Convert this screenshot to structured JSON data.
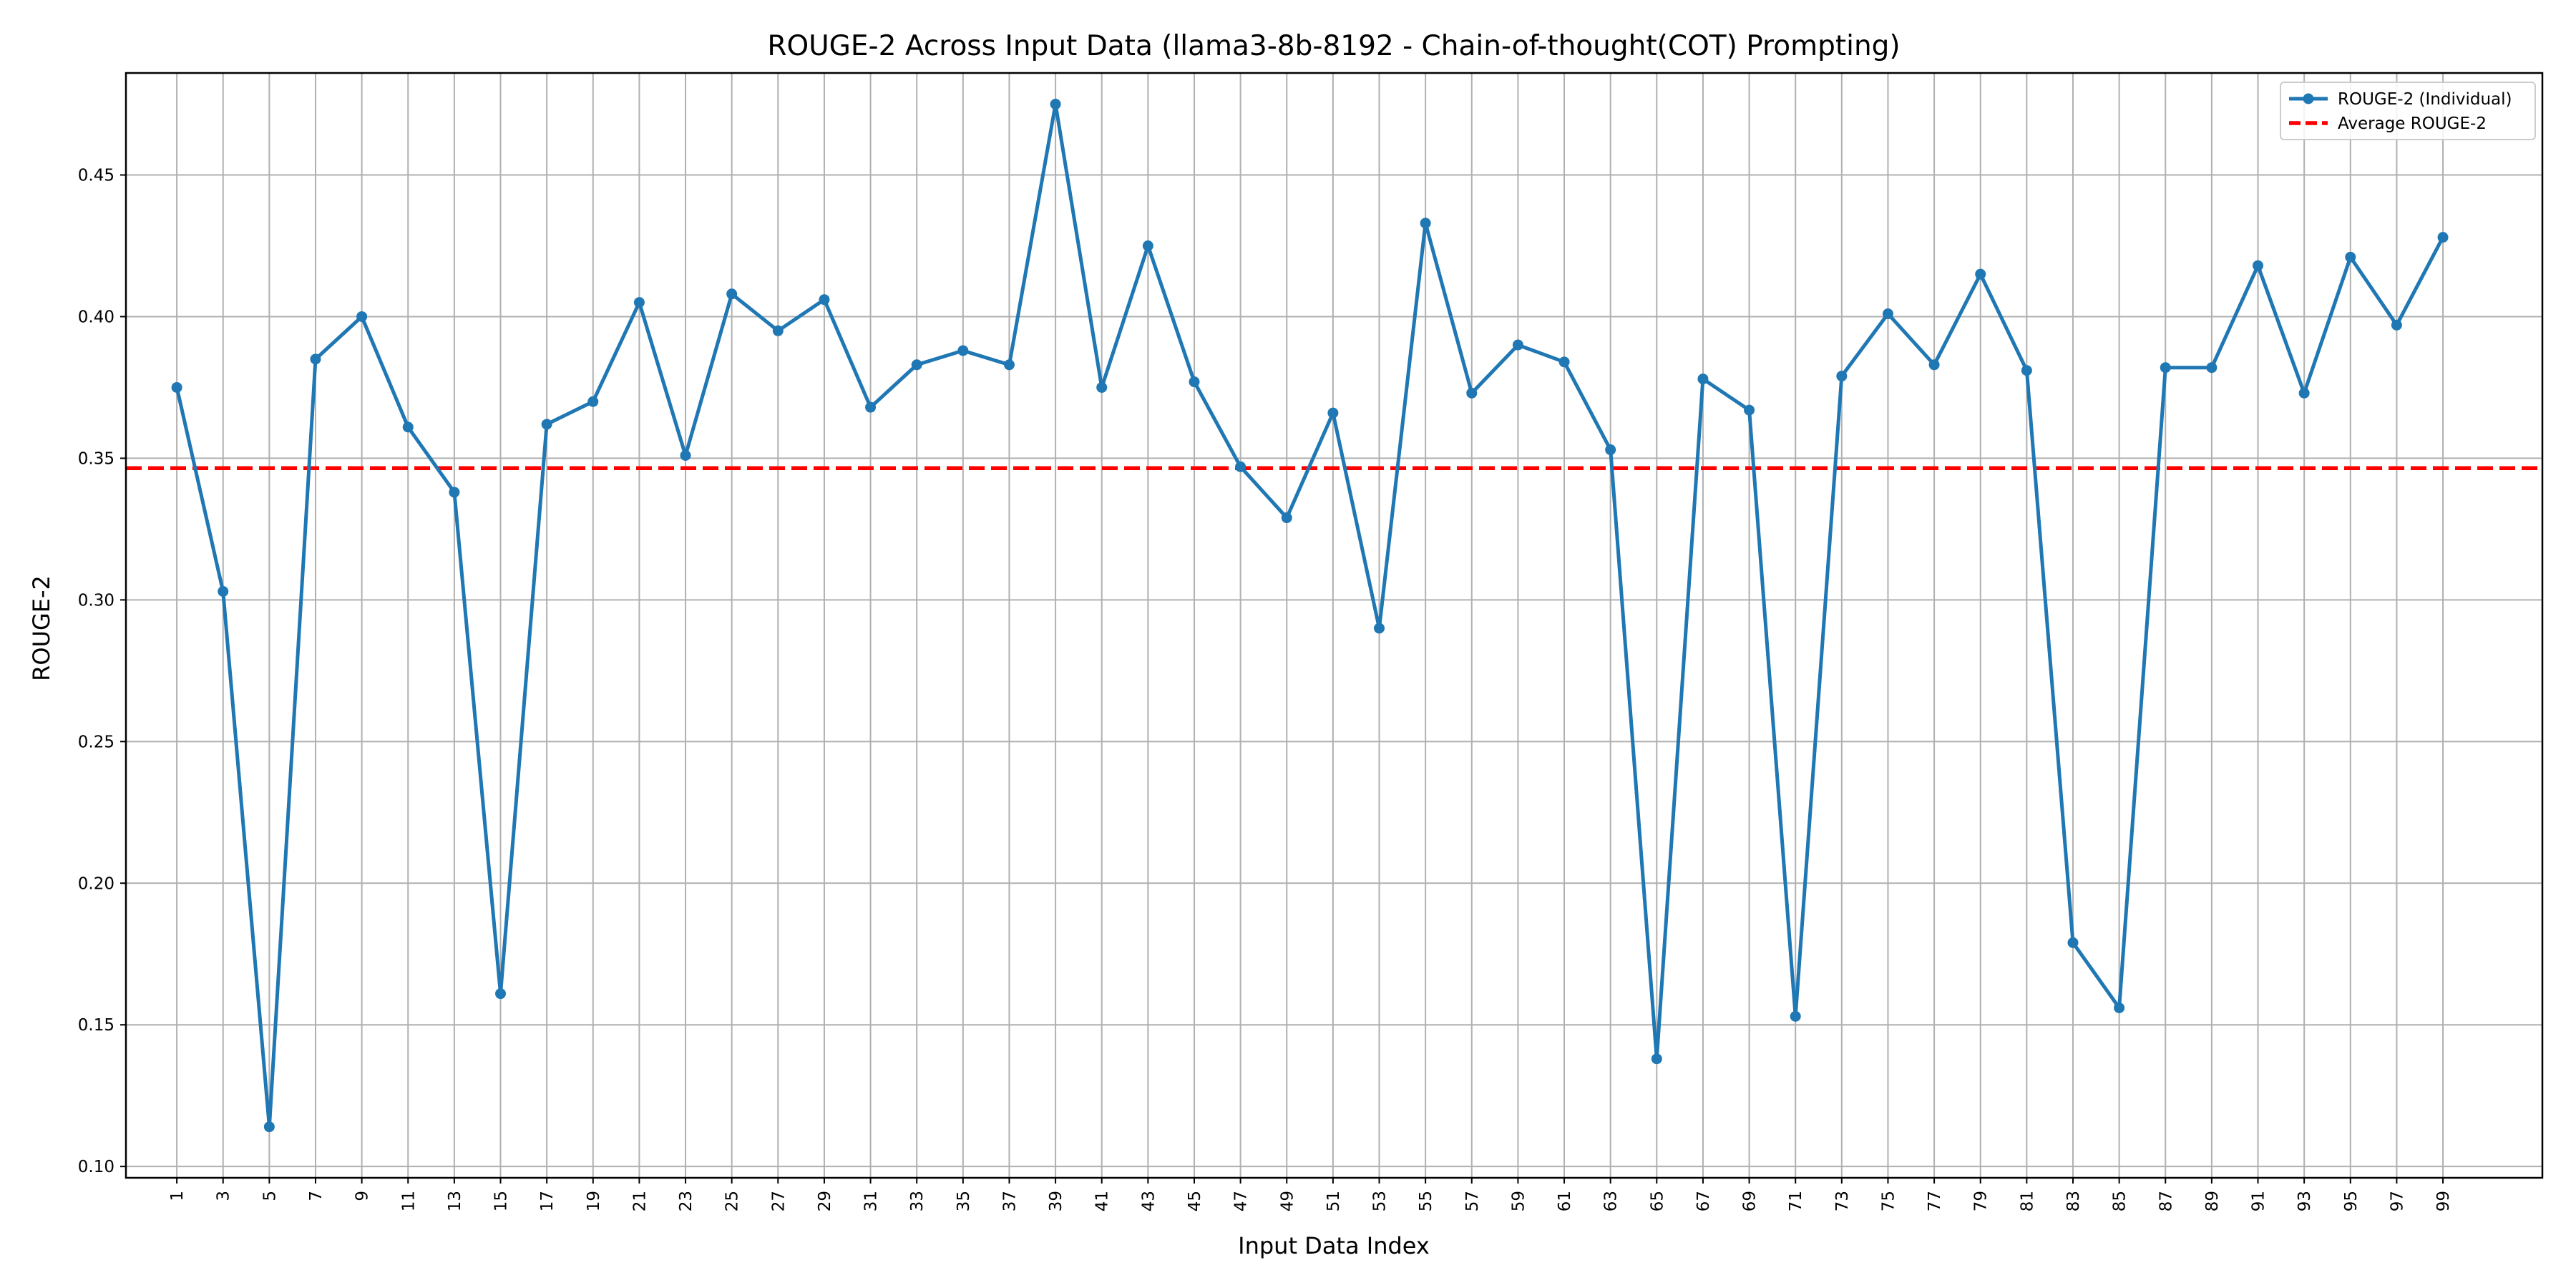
{
  "chart_data": {
    "type": "line",
    "title": "ROUGE-2 Across Input Data (llama3-8b-8192 - Chain-of-thought(COT) Prompting)",
    "xlabel": "Input Data Index",
    "ylabel": "ROUGE-2",
    "xlim": [
      -1.2,
      103.3
    ],
    "ylim": [
      0.096,
      0.486
    ],
    "yticks": [
      "0.10",
      "0.15",
      "0.20",
      "0.25",
      "0.30",
      "0.35",
      "0.40",
      "0.45"
    ],
    "xticks": [
      "1",
      "3",
      "5",
      "7",
      "9",
      "11",
      "13",
      "15",
      "17",
      "19",
      "21",
      "23",
      "25",
      "27",
      "29",
      "31",
      "33",
      "35",
      "37",
      "39",
      "41",
      "43",
      "45",
      "47",
      "49",
      "51",
      "53",
      "55",
      "57",
      "59",
      "61",
      "63",
      "65",
      "67",
      "69",
      "71",
      "73",
      "75",
      "77",
      "79",
      "81",
      "83",
      "85",
      "87",
      "89",
      "91",
      "93",
      "95",
      "97",
      "99"
    ],
    "grid": true,
    "legend_position": "top-right",
    "series": [
      {
        "name": "ROUGE-2 (Individual)",
        "style": "solid-line-with-markers",
        "color": "#1f77b4",
        "x": [
          1,
          3,
          5,
          7,
          9,
          11,
          13,
          15,
          17,
          19,
          21,
          23,
          25,
          27,
          29,
          31,
          33,
          35,
          37,
          39,
          41,
          43,
          45,
          47,
          49,
          51,
          53,
          55,
          57,
          59,
          61,
          63,
          65,
          67,
          69,
          71,
          73,
          75,
          77,
          79,
          81,
          83,
          85,
          87,
          89,
          91,
          93,
          95,
          97,
          99
        ],
        "y": [
          0.375,
          0.303,
          0.114,
          0.385,
          0.4,
          0.361,
          0.338,
          0.161,
          0.362,
          0.37,
          0.405,
          0.351,
          0.408,
          0.395,
          0.406,
          0.368,
          0.383,
          0.388,
          0.383,
          0.475,
          0.375,
          0.425,
          0.377,
          0.347,
          0.329,
          0.366,
          0.29,
          0.433,
          0.373,
          0.39,
          0.384,
          0.353,
          0.138,
          0.378,
          0.367,
          0.153,
          0.379,
          0.401,
          0.383,
          0.415,
          0.381,
          0.179,
          0.156,
          0.382,
          0.382,
          0.418,
          0.373,
          0.421,
          0.397,
          0.428
        ]
      },
      {
        "name": "Average ROUGE-2",
        "style": "dashed-line",
        "color": "#ff0000",
        "y_constant": 0.3465
      }
    ]
  }
}
